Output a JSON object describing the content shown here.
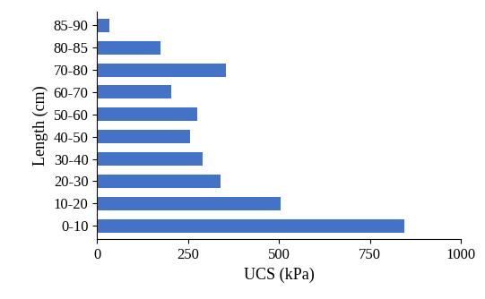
{
  "chart_data": {
    "type": "bar",
    "orientation": "horizontal",
    "x_label": "UCS (kPa)",
    "y_label": "Length (cm)",
    "categories": [
      "0-10",
      "10-20",
      "20-30",
      "30-40",
      "40-50",
      "50-60",
      "60-70",
      "70-80",
      "80-85",
      "85-90"
    ],
    "values": [
      845,
      505,
      340,
      290,
      255,
      275,
      205,
      355,
      175,
      35
    ],
    "color": "#4472c4",
    "xlim": [
      0,
      1000
    ],
    "xticks": [
      0,
      250,
      500,
      750,
      1000
    ],
    "grid": false
  }
}
